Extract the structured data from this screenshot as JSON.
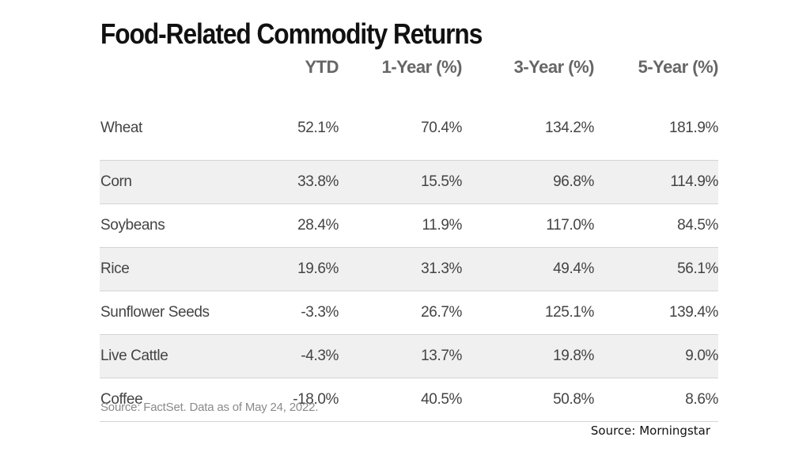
{
  "chart_data": {
    "type": "table",
    "title": "Food-Related Commodity Returns",
    "columns": [
      "",
      "YTD",
      "1-Year (%)",
      "3-Year (%)",
      "5-Year (%)"
    ],
    "rows": [
      {
        "name": "Wheat",
        "values": [
          "52.1%",
          "70.4%",
          "134.2%",
          "181.9%"
        ]
      },
      {
        "name": "Corn",
        "values": [
          "33.8%",
          "15.5%",
          "96.8%",
          "114.9%"
        ]
      },
      {
        "name": "Soybeans",
        "values": [
          "28.4%",
          "11.9%",
          "117.0%",
          "84.5%"
        ]
      },
      {
        "name": "Rice",
        "values": [
          "19.6%",
          "31.3%",
          "49.4%",
          "56.1%"
        ]
      },
      {
        "name": "Sunflower Seeds",
        "values": [
          "-3.3%",
          "26.7%",
          "125.1%",
          "139.4%"
        ]
      },
      {
        "name": "Live Cattle",
        "values": [
          "-4.3%",
          "13.7%",
          "19.8%",
          "9.0%"
        ]
      },
      {
        "name": "Coffee",
        "values": [
          "-18.0%",
          "40.5%",
          "50.8%",
          "8.6%"
        ]
      }
    ],
    "note": "Source: FactSet. Data as of May 24, 2022."
  },
  "source_caption": "Source: Morningstar",
  "colors": {
    "title": "#111111",
    "header_text": "#666666",
    "body_text": "#444444",
    "row_shade": "#f0f0f0",
    "divider": "#d4d4d4",
    "note_text": "#8a8a8a"
  }
}
